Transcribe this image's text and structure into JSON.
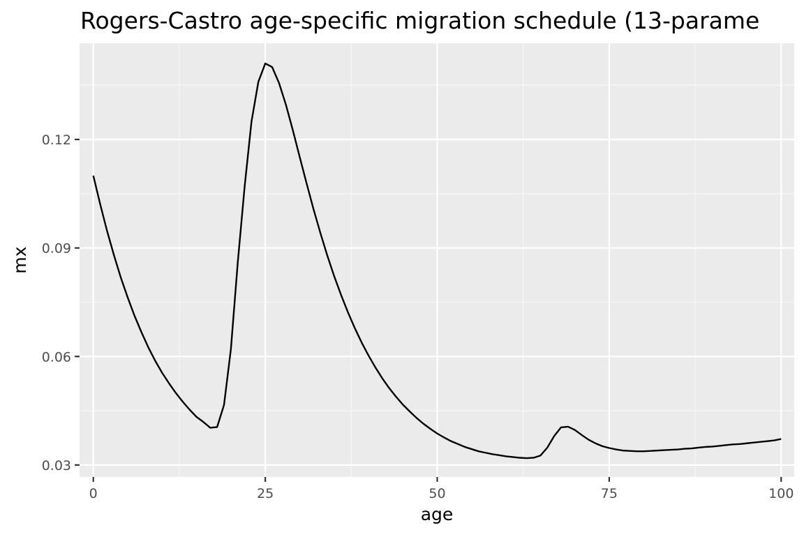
{
  "chart_data": {
    "type": "line",
    "title": "Rogers-Castro age-specific migration schedule (13-parame",
    "xlabel": "age",
    "ylabel": "mx",
    "xlim": [
      -2,
      101.9
    ],
    "ylim": [
      0.0267,
      0.1466
    ],
    "x_ticks": [
      0,
      25,
      50,
      75,
      100
    ],
    "x_tick_labels": [
      "0",
      "25",
      "50",
      "75",
      "100"
    ],
    "y_ticks": [
      0.03,
      0.06,
      0.09,
      0.12
    ],
    "y_tick_labels": [
      "0.03",
      "0.06",
      "0.09",
      "0.12"
    ],
    "grid": true,
    "theme_colors": {
      "panel_background": "#ebebeb",
      "grid_major": "#ffffff",
      "grid_minor": "#f7f7f7",
      "line": "#000000",
      "tick_mark": "#333333"
    },
    "series": [
      {
        "x": [
          0,
          1,
          2,
          3,
          4,
          5,
          6,
          7,
          8,
          9,
          10,
          11,
          12,
          13,
          14,
          15,
          16,
          17,
          18,
          19,
          20,
          21,
          22,
          23,
          24,
          25,
          26,
          27,
          28,
          29,
          30,
          31,
          32,
          33,
          34,
          35,
          36,
          37,
          38,
          39,
          40,
          41,
          42,
          43,
          44,
          45,
          46,
          47,
          48,
          49,
          50,
          51,
          52,
          53,
          54,
          55,
          56,
          57,
          58,
          59,
          60,
          61,
          62,
          63,
          64,
          65,
          66,
          67,
          68,
          69,
          70,
          71,
          72,
          73,
          74,
          75,
          76,
          77,
          78,
          79,
          80,
          81,
          82,
          83,
          84,
          85,
          86,
          87,
          88,
          89,
          90,
          91,
          92,
          93,
          94,
          95,
          96,
          97,
          98,
          99,
          100
        ],
        "values": [
          0.11,
          0.1021,
          0.0947,
          0.088,
          0.0818,
          0.0763,
          0.0712,
          0.0667,
          0.0625,
          0.0588,
          0.0555,
          0.0526,
          0.0499,
          0.0475,
          0.0453,
          0.0433,
          0.0419,
          0.0403,
          0.0405,
          0.0466,
          0.062,
          0.086,
          0.107,
          0.125,
          0.136,
          0.141,
          0.14,
          0.1356,
          0.1296,
          0.1226,
          0.1152,
          0.1079,
          0.1008,
          0.0942,
          0.088,
          0.0823,
          0.0771,
          0.0723,
          0.0679,
          0.0639,
          0.0603,
          0.057,
          0.054,
          0.0513,
          0.0489,
          0.0467,
          0.0448,
          0.043,
          0.0414,
          0.04,
          0.0387,
          0.0376,
          0.0366,
          0.0358,
          0.035,
          0.0344,
          0.0338,
          0.0334,
          0.033,
          0.0327,
          0.0324,
          0.0322,
          0.032,
          0.0319,
          0.032,
          0.0326,
          0.0348,
          0.038,
          0.0404,
          0.0406,
          0.0397,
          0.0383,
          0.037,
          0.036,
          0.0352,
          0.0347,
          0.0343,
          0.034,
          0.0339,
          0.0338,
          0.0338,
          0.0339,
          0.034,
          0.0341,
          0.0342,
          0.0343,
          0.0345,
          0.0346,
          0.0348,
          0.035,
          0.0351,
          0.0353,
          0.0355,
          0.0357,
          0.0358,
          0.036,
          0.0362,
          0.0364,
          0.0366,
          0.0368,
          0.0372
        ]
      }
    ]
  }
}
